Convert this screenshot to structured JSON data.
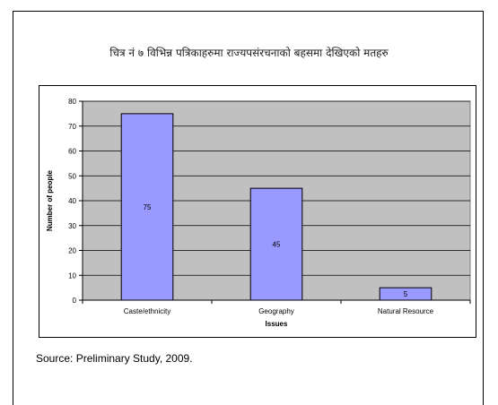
{
  "title": "चित्र नं ७ विभिन्न पत्रिकाहरुमा राज्यपसंरचनाको बहसमा देखिएको मतहरु",
  "source": "Source: Preliminary Study, 2009.",
  "colors": {
    "plot_bg": "#c0c0c0",
    "bar_fill": "#9999ff",
    "bar_stroke": "#000000",
    "grid": "#000000"
  },
  "chart_data": {
    "type": "bar",
    "categories": [
      "Caste/ethnicity",
      "Geography",
      "Natural Resource"
    ],
    "values": [
      75,
      45,
      5
    ],
    "data_labels": [
      "75",
      "45",
      "5"
    ],
    "xlabel": "Issues",
    "ylabel": "Number of people",
    "ylim": [
      0,
      80
    ],
    "yticks": [
      0,
      10,
      20,
      30,
      40,
      50,
      60,
      70,
      80
    ],
    "grid": true,
    "legend": "none"
  }
}
